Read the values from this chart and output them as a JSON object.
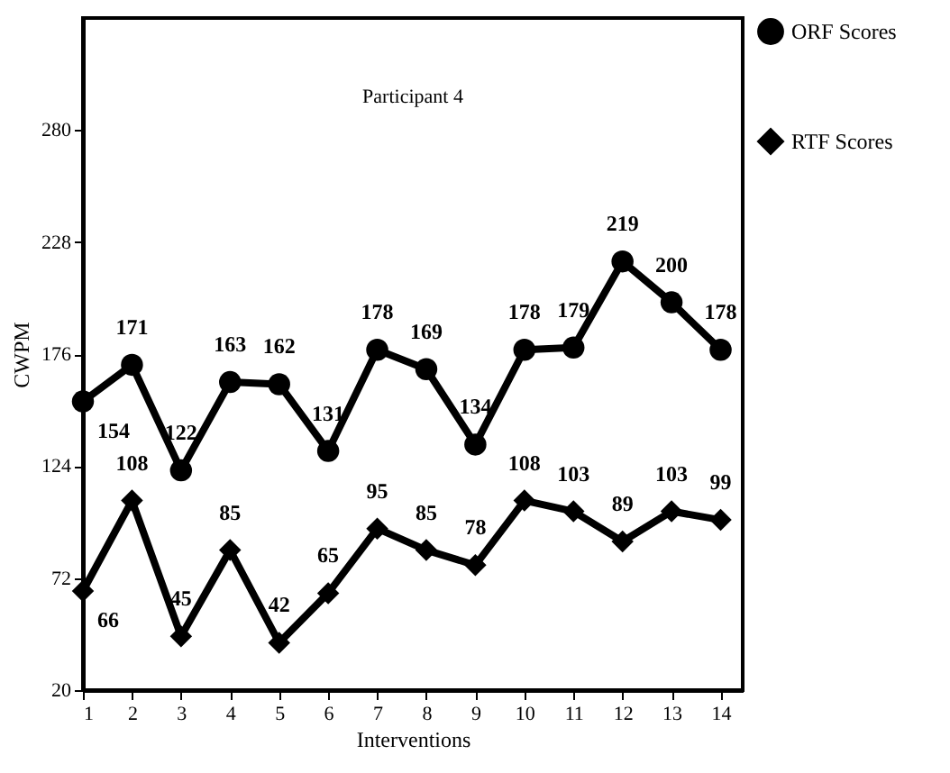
{
  "chart_data": {
    "type": "line",
    "title": "Participant 4",
    "xlabel": "Interventions",
    "ylabel": "CWPM",
    "x": [
      1,
      2,
      3,
      4,
      5,
      6,
      7,
      8,
      9,
      10,
      11,
      12,
      13,
      14
    ],
    "series": [
      {
        "name": "ORF Scores",
        "color": "#000000",
        "marker": "circle",
        "values": [
          154,
          171,
          122,
          163,
          162,
          131,
          178,
          169,
          134,
          178,
          179,
          219,
          200,
          178
        ]
      },
      {
        "name": "RTF Scores",
        "color": "#000000",
        "marker": "diamond",
        "values": [
          66,
          108,
          45,
          85,
          42,
          65,
          95,
          85,
          78,
          108,
          103,
          89,
          103,
          99
        ]
      }
    ],
    "xlim": [
      1,
      14.45
    ],
    "xticks": [
      1,
      2,
      3,
      4,
      5,
      6,
      7,
      8,
      9,
      10,
      11,
      12,
      13,
      14
    ],
    "ylim": [
      20,
      332
    ],
    "yticks": [
      20,
      72,
      124,
      176,
      228,
      280
    ],
    "grid": false,
    "legend": "right",
    "data_labels": true,
    "line_style": "solid"
  }
}
